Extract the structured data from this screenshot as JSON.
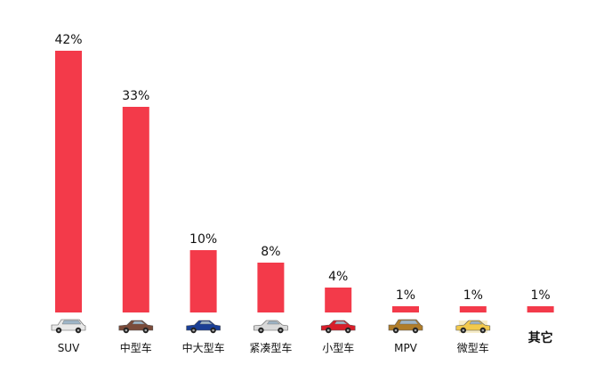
{
  "chart_data": {
    "type": "bar",
    "categories": [
      "SUV",
      "中型车",
      "中大型车",
      "紧凑型车",
      "小型车",
      "MPV",
      "微型车",
      "其它"
    ],
    "values": [
      42,
      33,
      10,
      8,
      4,
      1,
      1,
      1
    ],
    "value_labels": [
      "42%",
      "33%",
      "10%",
      "8%",
      "4%",
      "1%",
      "1%",
      "1%"
    ],
    "unit": "%",
    "title": "",
    "xlabel": "",
    "ylabel": "",
    "ylim": [
      0,
      42
    ],
    "grid": false,
    "legend": "none",
    "bar_color": "#f33a4a",
    "category_icons": [
      {
        "name": "suv-car-icon",
        "color": "#e8e8e8"
      },
      {
        "name": "midsize-car-icon",
        "color": "#7a4b3a"
      },
      {
        "name": "large-car-icon",
        "color": "#1b3f95"
      },
      {
        "name": "compact-car-icon",
        "color": "#d9d9d9"
      },
      {
        "name": "small-car-icon",
        "color": "#d81e2a"
      },
      {
        "name": "mpv-car-icon",
        "color": "#b07d2a"
      },
      {
        "name": "mini-car-icon",
        "color": "#f2c94c"
      },
      null
    ]
  }
}
